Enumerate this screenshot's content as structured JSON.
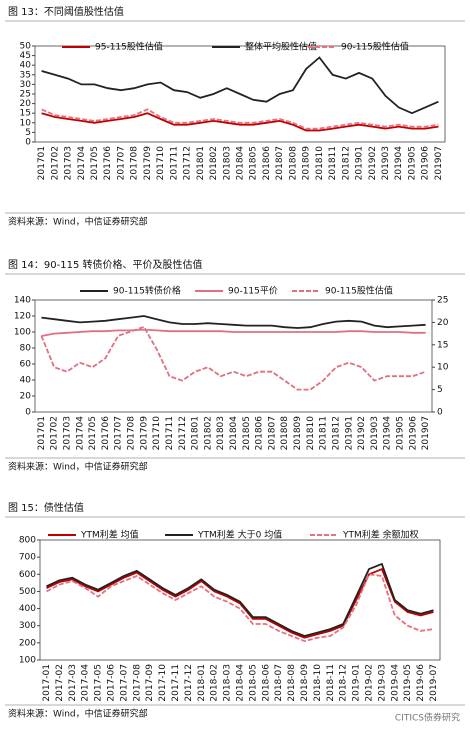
{
  "chart_data": [
    {
      "type": "line",
      "title": "图 13：不同阈值股性估值",
      "source": "资料来源：Wind，中信证券研究部",
      "categories": [
        "201701",
        "201702",
        "201703",
        "201704",
        "201705",
        "201706",
        "201707",
        "201708",
        "201709",
        "201710",
        "201711",
        "201712",
        "201801",
        "201802",
        "201803",
        "201804",
        "201805",
        "201806",
        "201807",
        "201808",
        "201809",
        "201810",
        "201811",
        "201812",
        "201901",
        "201902",
        "201903",
        "201904",
        "201905",
        "201906",
        "201907"
      ],
      "ylim": [
        0,
        50
      ],
      "yticks": [
        0,
        5,
        10,
        15,
        20,
        25,
        30,
        35,
        40,
        45,
        50
      ],
      "series": [
        {
          "name": "95-115股性估值",
          "color": "#c00000",
          "dash": false,
          "values": [
            15,
            13,
            12,
            11,
            10,
            11,
            12,
            13,
            15,
            12,
            9,
            9,
            10,
            11,
            10,
            9,
            9,
            10,
            11,
            9,
            6,
            6,
            7,
            8,
            9,
            8,
            7,
            8,
            7,
            7,
            8
          ]
        },
        {
          "name": "整体平均股性估值",
          "color": "#222222",
          "dash": false,
          "values": [
            37,
            35,
            33,
            30,
            30,
            28,
            27,
            28,
            30,
            31,
            27,
            26,
            23,
            25,
            28,
            25,
            22,
            21,
            25,
            27,
            38,
            44,
            35,
            33,
            36,
            33,
            24,
            18,
            15,
            18,
            21
          ]
        },
        {
          "name": "90-115股性估值",
          "color": "#e8707f",
          "dash": true,
          "values": [
            17,
            14,
            13,
            12,
            11,
            12,
            13,
            14,
            17,
            13,
            10,
            10,
            11,
            12,
            11,
            10,
            10,
            11,
            12,
            10,
            7,
            7,
            8,
            9,
            10,
            9,
            8,
            9,
            8,
            8,
            9
          ]
        }
      ]
    },
    {
      "type": "line",
      "title": "图 14：90-115 转债价格、平价及股性估值",
      "source": "资料来源：Wind，中信证券研究部",
      "categories": [
        "201701",
        "201702",
        "201703",
        "201704",
        "201705",
        "201706",
        "201707",
        "201708",
        "201709",
        "201710",
        "201711",
        "201712",
        "201801",
        "201802",
        "201803",
        "201804",
        "201805",
        "201806",
        "201807",
        "201808",
        "201809",
        "201810",
        "201811",
        "201812",
        "201901",
        "201902",
        "201903",
        "201904",
        "201905",
        "201906",
        "201907"
      ],
      "ylim": [
        0,
        140
      ],
      "yticks": [
        0,
        20,
        40,
        60,
        80,
        100,
        120,
        140
      ],
      "y2lim": [
        0,
        25
      ],
      "y2ticks": [
        0,
        5,
        10,
        15,
        20,
        25
      ],
      "series": [
        {
          "name": "90-115转债价格",
          "color": "#222222",
          "dash": false,
          "values": [
            118,
            116,
            114,
            112,
            113,
            114,
            116,
            118,
            120,
            116,
            112,
            110,
            110,
            111,
            110,
            109,
            108,
            108,
            108,
            106,
            105,
            106,
            110,
            113,
            114,
            113,
            108,
            106,
            107,
            108,
            109
          ]
        },
        {
          "name": "90-115平价",
          "color": "#e07080",
          "dash": false,
          "values": [
            95,
            98,
            99,
            100,
            101,
            101,
            102,
            102,
            103,
            102,
            101,
            101,
            101,
            101,
            101,
            100,
            100,
            100,
            100,
            100,
            100,
            100,
            100,
            100,
            101,
            101,
            100,
            100,
            100,
            99,
            99
          ]
        },
        {
          "name": "90-115股性估值",
          "color": "#e07080",
          "dash": true,
          "axis": "y2",
          "values": [
            17,
            10,
            9,
            11,
            10,
            12,
            17,
            18,
            19,
            14,
            8,
            7,
            9,
            10,
            8,
            9,
            8,
            9,
            9,
            7,
            5,
            5,
            7,
            10,
            11,
            10,
            7,
            8,
            8,
            8,
            9
          ]
        }
      ]
    },
    {
      "type": "line",
      "title": "图 15：债性估值",
      "source": "资料来源：Wind，中信证券研究部",
      "categories": [
        "2017-01",
        "2017-02",
        "2017-03",
        "2017-04",
        "2017-05",
        "2017-06",
        "2017-07",
        "2017-08",
        "2017-09",
        "2017-10",
        "2017-11",
        "2017-12",
        "2018-01",
        "2018-02",
        "2018-03",
        "2018-04",
        "2018-05",
        "2018-06",
        "2018-07",
        "2018-08",
        "2018-09",
        "2018-10",
        "2018-11",
        "2018-12",
        "2019-01",
        "2019-02",
        "2019-03",
        "2019-04",
        "2019-05",
        "2019-06",
        "2019-07"
      ],
      "ylim": [
        100,
        800
      ],
      "yticks": [
        100,
        200,
        300,
        400,
        500,
        600,
        700,
        800
      ],
      "series": [
        {
          "name": "YTM利差 均值",
          "color": "#c00000",
          "dash": false,
          "values": [
            520,
            555,
            570,
            530,
            500,
            540,
            580,
            610,
            560,
            510,
            470,
            510,
            560,
            500,
            470,
            430,
            340,
            340,
            300,
            260,
            230,
            250,
            270,
            300,
            450,
            600,
            630,
            440,
            380,
            360,
            380
          ]
        },
        {
          "name": "YTM利差 大于0 均值",
          "color": "#222222",
          "dash": false,
          "values": [
            530,
            565,
            580,
            540,
            510,
            550,
            590,
            620,
            570,
            520,
            480,
            520,
            570,
            510,
            480,
            440,
            350,
            350,
            310,
            270,
            240,
            260,
            280,
            310,
            470,
            630,
            660,
            450,
            390,
            370,
            390
          ]
        },
        {
          "name": "YTM利差 余额加权",
          "color": "#e8707f",
          "dash": true,
          "values": [
            500,
            540,
            560,
            520,
            470,
            530,
            560,
            590,
            540,
            490,
            450,
            490,
            530,
            470,
            440,
            400,
            310,
            310,
            270,
            240,
            210,
            230,
            240,
            290,
            420,
            600,
            590,
            360,
            300,
            270,
            280
          ]
        }
      ]
    }
  ],
  "watermark": "CITICS债券研究"
}
